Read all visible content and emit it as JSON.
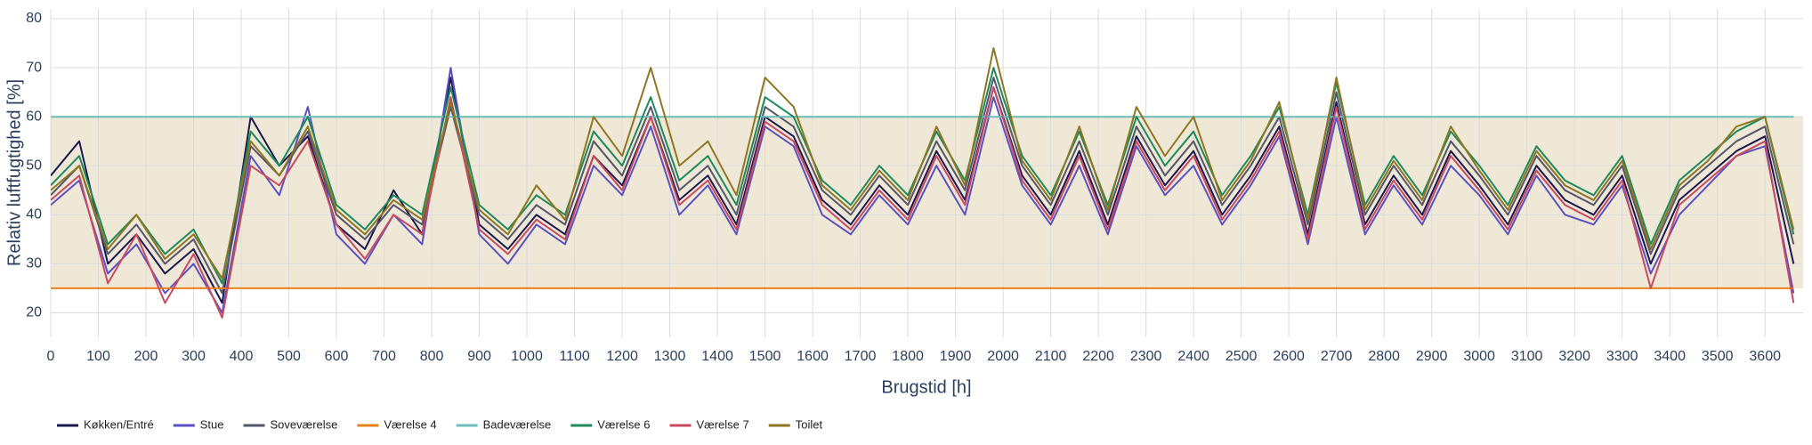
{
  "chart_data": {
    "type": "line",
    "x_label": "Brugstid [h]",
    "y_label": "Relativ luftfugtighed [%]",
    "xlim": [
      0,
      3680
    ],
    "ylim": [
      15,
      82
    ],
    "xticks": [
      0,
      100,
      200,
      300,
      400,
      500,
      600,
      700,
      800,
      900,
      1000,
      1100,
      1200,
      1300,
      1400,
      1500,
      1600,
      1700,
      1800,
      1900,
      2000,
      2100,
      2200,
      2300,
      2400,
      2500,
      2600,
      2700,
      2800,
      2900,
      3000,
      3100,
      3200,
      3300,
      3400,
      3500,
      3600
    ],
    "yticks": [
      20,
      30,
      40,
      50,
      60,
      70,
      80
    ],
    "grid": true,
    "shaded_range": {
      "from": 25,
      "to": 60,
      "color": "#f0e8d6"
    },
    "legend": "bottom-left",
    "x": [
      0,
      60,
      120,
      180,
      240,
      300,
      360,
      420,
      480,
      540,
      600,
      660,
      720,
      780,
      840,
      900,
      960,
      1020,
      1080,
      1140,
      1200,
      1260,
      1320,
      1380,
      1440,
      1500,
      1560,
      1620,
      1680,
      1740,
      1800,
      1860,
      1920,
      1980,
      2040,
      2100,
      2160,
      2220,
      2280,
      2340,
      2400,
      2460,
      2520,
      2580,
      2640,
      2700,
      2760,
      2820,
      2880,
      2940,
      3000,
      3060,
      3120,
      3180,
      3240,
      3300,
      3360,
      3420,
      3480,
      3540,
      3600,
      3660
    ],
    "series": [
      {
        "name": "Køkken/Entré",
        "color": "#1c1850",
        "values": [
          48,
          55,
          30,
          36,
          28,
          33,
          22,
          60,
          50,
          56,
          38,
          33,
          45,
          36,
          68,
          38,
          33,
          40,
          36,
          52,
          46,
          60,
          43,
          48,
          38,
          60,
          56,
          43,
          38,
          46,
          40,
          53,
          43,
          66,
          48,
          40,
          53,
          38,
          56,
          46,
          53,
          40,
          48,
          58,
          36,
          63,
          38,
          48,
          40,
          53,
          46,
          38,
          50,
          43,
          40,
          48,
          30,
          43,
          48,
          53,
          56,
          30
        ]
      },
      {
        "name": "Stue",
        "color": "#5b50c2",
        "values": [
          42,
          47,
          28,
          34,
          24,
          30,
          20,
          52,
          44,
          62,
          36,
          30,
          40,
          34,
          70,
          36,
          30,
          38,
          34,
          50,
          44,
          58,
          40,
          46,
          36,
          58,
          54,
          40,
          36,
          44,
          38,
          50,
          40,
          64,
          46,
          38,
          50,
          36,
          54,
          44,
          50,
          38,
          46,
          56,
          34,
          60,
          36,
          46,
          38,
          50,
          44,
          36,
          48,
          40,
          38,
          46,
          28,
          40,
          46,
          52,
          54,
          24
        ]
      },
      {
        "name": "Soveværelse",
        "color": "#55566a",
        "values": [
          44,
          50,
          32,
          38,
          30,
          35,
          24,
          54,
          48,
          57,
          40,
          35,
          42,
          38,
          62,
          40,
          35,
          42,
          38,
          55,
          48,
          62,
          45,
          50,
          40,
          62,
          58,
          45,
          40,
          48,
          42,
          55,
          45,
          68,
          50,
          42,
          55,
          40,
          58,
          48,
          55,
          42,
          50,
          60,
          38,
          65,
          40,
          50,
          42,
          55,
          48,
          40,
          52,
          45,
          42,
          50,
          32,
          45,
          50,
          55,
          58,
          34
        ]
      },
      {
        "name": "Værelse 4",
        "color": "#e8801e",
        "values": [
          25,
          25,
          25,
          25,
          25,
          25,
          25,
          25,
          25,
          25,
          25,
          25,
          25,
          25,
          25,
          25,
          25,
          25,
          25,
          25,
          25,
          25,
          25,
          25,
          25,
          25,
          25,
          25,
          25,
          25,
          25,
          25,
          25,
          25,
          25,
          25,
          25,
          25,
          25,
          25,
          25,
          25,
          25,
          25,
          25,
          25,
          25,
          25,
          25,
          25,
          25,
          25,
          25,
          25,
          25,
          25,
          25,
          25,
          25,
          25,
          25,
          25
        ]
      },
      {
        "name": "Badeværelse",
        "color": "#6cbcbc",
        "values": [
          60,
          60,
          60,
          60,
          60,
          60,
          60,
          60,
          60,
          60,
          60,
          60,
          60,
          60,
          60,
          60,
          60,
          60,
          60,
          60,
          60,
          60,
          60,
          60,
          60,
          60,
          60,
          60,
          60,
          60,
          60,
          60,
          60,
          60,
          60,
          60,
          60,
          60,
          60,
          60,
          60,
          60,
          60,
          60,
          60,
          60,
          60,
          60,
          60,
          60,
          60,
          60,
          60,
          60,
          60,
          60,
          60,
          60,
          60,
          60,
          60,
          60
        ]
      },
      {
        "name": "Værelse 6",
        "color": "#1e8a5c",
        "values": [
          46,
          52,
          34,
          40,
          32,
          37,
          26,
          57,
          50,
          60,
          42,
          37,
          44,
          40,
          66,
          42,
          37,
          44,
          40,
          57,
          50,
          64,
          47,
          52,
          42,
          64,
          60,
          47,
          42,
          50,
          44,
          57,
          47,
          70,
          52,
          44,
          57,
          42,
          60,
          50,
          57,
          44,
          52,
          62,
          40,
          67,
          42,
          52,
          44,
          57,
          50,
          42,
          54,
          47,
          44,
          52,
          34,
          47,
          52,
          57,
          60,
          36
        ]
      },
      {
        "name": "Værelse 7",
        "color": "#c94a60",
        "values": [
          43,
          48,
          26,
          36,
          22,
          32,
          19,
          50,
          46,
          55,
          38,
          31,
          40,
          36,
          64,
          37,
          32,
          39,
          35,
          52,
          45,
          60,
          42,
          47,
          37,
          59,
          55,
          42,
          37,
          45,
          39,
          52,
          42,
          66,
          47,
          39,
          52,
          37,
          55,
          45,
          52,
          39,
          47,
          57,
          35,
          62,
          37,
          47,
          39,
          52,
          45,
          37,
          49,
          42,
          39,
          47,
          25,
          42,
          47,
          52,
          55,
          22
        ]
      },
      {
        "name": "Toilet",
        "color": "#8e7622",
        "values": [
          45,
          50,
          33,
          40,
          31,
          36,
          27,
          55,
          48,
          58,
          41,
          36,
          43,
          39,
          63,
          41,
          36,
          46,
          39,
          60,
          52,
          70,
          50,
          55,
          44,
          68,
          62,
          46,
          41,
          49,
          43,
          58,
          46,
          74,
          51,
          43,
          58,
          41,
          62,
          52,
          60,
          43,
          51,
          63,
          39,
          68,
          41,
          51,
          43,
          58,
          49,
          41,
          53,
          46,
          43,
          51,
          33,
          46,
          51,
          58,
          60,
          37
        ]
      }
    ]
  }
}
